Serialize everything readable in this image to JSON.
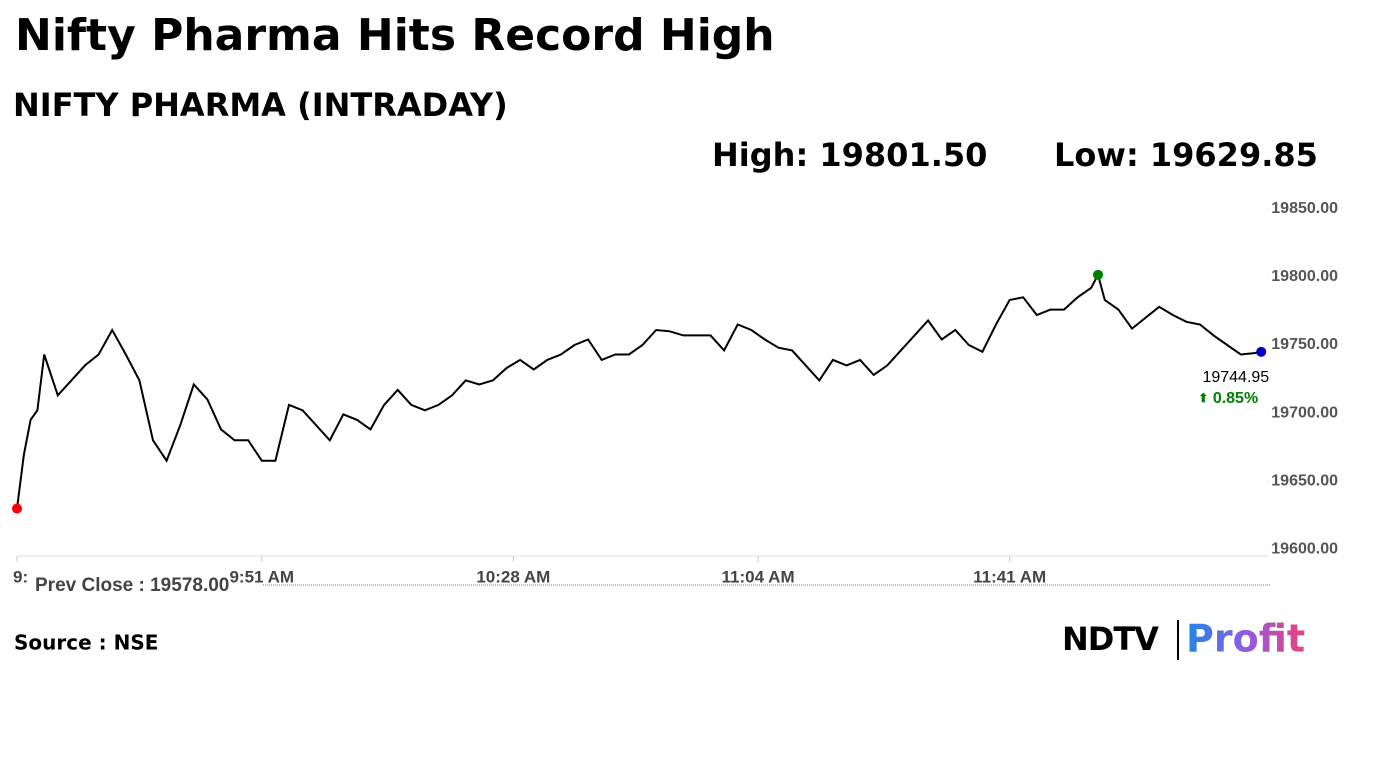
{
  "chart_data": {
    "type": "line",
    "title": "Nifty Pharma Hits Record High",
    "subtitle": "NIFTY PHARMA (INTRADAY)",
    "high_label": "High:",
    "high": {
      "value": 19801.5,
      "label": "19801.50"
    },
    "low_label": "Low:",
    "low": {
      "value": 19629.85,
      "label": "19629.85"
    },
    "last": {
      "value": 19744.95,
      "label": "19744.95"
    },
    "change_arrow": "⬆",
    "change": {
      "value": 0.85,
      "label": "0.85%"
    },
    "prev_close_label": "Prev Close :",
    "prev_close": {
      "value": 19578,
      "label": "19578.00"
    },
    "source": "Source : NSE",
    "logo": "NDTV",
    "logo_suffix": "Profit",
    "x": [
      555,
      556,
      557,
      558,
      559,
      561,
      563,
      565,
      567,
      569,
      571,
      573,
      575,
      577,
      579,
      581,
      583,
      585,
      587,
      589,
      591,
      593,
      595,
      597,
      599,
      601,
      603,
      605,
      607,
      609,
      611,
      613,
      615,
      617,
      619,
      621,
      623,
      625,
      627,
      629,
      631,
      633,
      635,
      637,
      639,
      641,
      643,
      645,
      647,
      649,
      651,
      653,
      655,
      657,
      659,
      661,
      663,
      665,
      667,
      669,
      671,
      673,
      675,
      677,
      679,
      681,
      683,
      685,
      687,
      689,
      691,
      693,
      695,
      697,
      699,
      701,
      703,
      705,
      707,
      709,
      711,
      713,
      714,
      715,
      717,
      719,
      721,
      723,
      725,
      727,
      729,
      731,
      733,
      735,
      737,
      738
    ],
    "series": [
      {
        "name": "NIFTY PHARMA",
        "color": "#000000",
        "values": [
          19629.85,
          19669,
          19695,
          19702,
          19743,
          19713,
          19724,
          19735,
          19743,
          19761,
          19743,
          19724,
          19680,
          19665,
          19691,
          19721,
          19710,
          19688,
          19680,
          19680,
          19665,
          19665,
          19706,
          19702,
          19691,
          19680,
          19699,
          19695,
          19688,
          19706,
          19717,
          19706,
          19702,
          19706,
          19713,
          19724,
          19721,
          19724,
          19733,
          19739,
          19732,
          19739,
          19743,
          19750,
          19754,
          19739,
          19743,
          19743,
          19750,
          19761,
          19760,
          19757,
          19757,
          19757,
          19746,
          19765,
          19761,
          19754,
          19748,
          19746,
          19735,
          19724,
          19739,
          19735,
          19739,
          19728,
          19735,
          19746,
          19757,
          19768,
          19754,
          19761,
          19750,
          19745,
          19765,
          19783,
          19785,
          19772,
          19776,
          19776,
          19785,
          19792,
          19801.5,
          19783,
          19776,
          19762,
          19770,
          19778,
          19772,
          19767,
          19765,
          19757,
          19750,
          19743,
          19744,
          19744.95
        ]
      }
    ],
    "xlim": [
      555,
      739
    ],
    "xticks": [
      {
        "value": 555,
        "label": "9:"
      },
      {
        "value": 591,
        "label": "9:51 AM"
      },
      {
        "value": 628,
        "label": "10:28 AM"
      },
      {
        "value": 664,
        "label": "11:04 AM"
      },
      {
        "value": 701,
        "label": "11:41 AM"
      }
    ],
    "ylim": [
      19595,
      19855
    ],
    "yticks": [
      {
        "value": 19600,
        "label": "19600.00"
      },
      {
        "value": 19650,
        "label": "19650.00"
      },
      {
        "value": 19700,
        "label": "19700.00"
      },
      {
        "value": 19750,
        "label": "19750.00"
      },
      {
        "value": 19800,
        "label": "19800.00"
      },
      {
        "value": 19850,
        "label": "19850.00"
      }
    ],
    "marker_colors": {
      "low": "#ff0000",
      "high": "#008000",
      "last": "#0000cc"
    }
  }
}
